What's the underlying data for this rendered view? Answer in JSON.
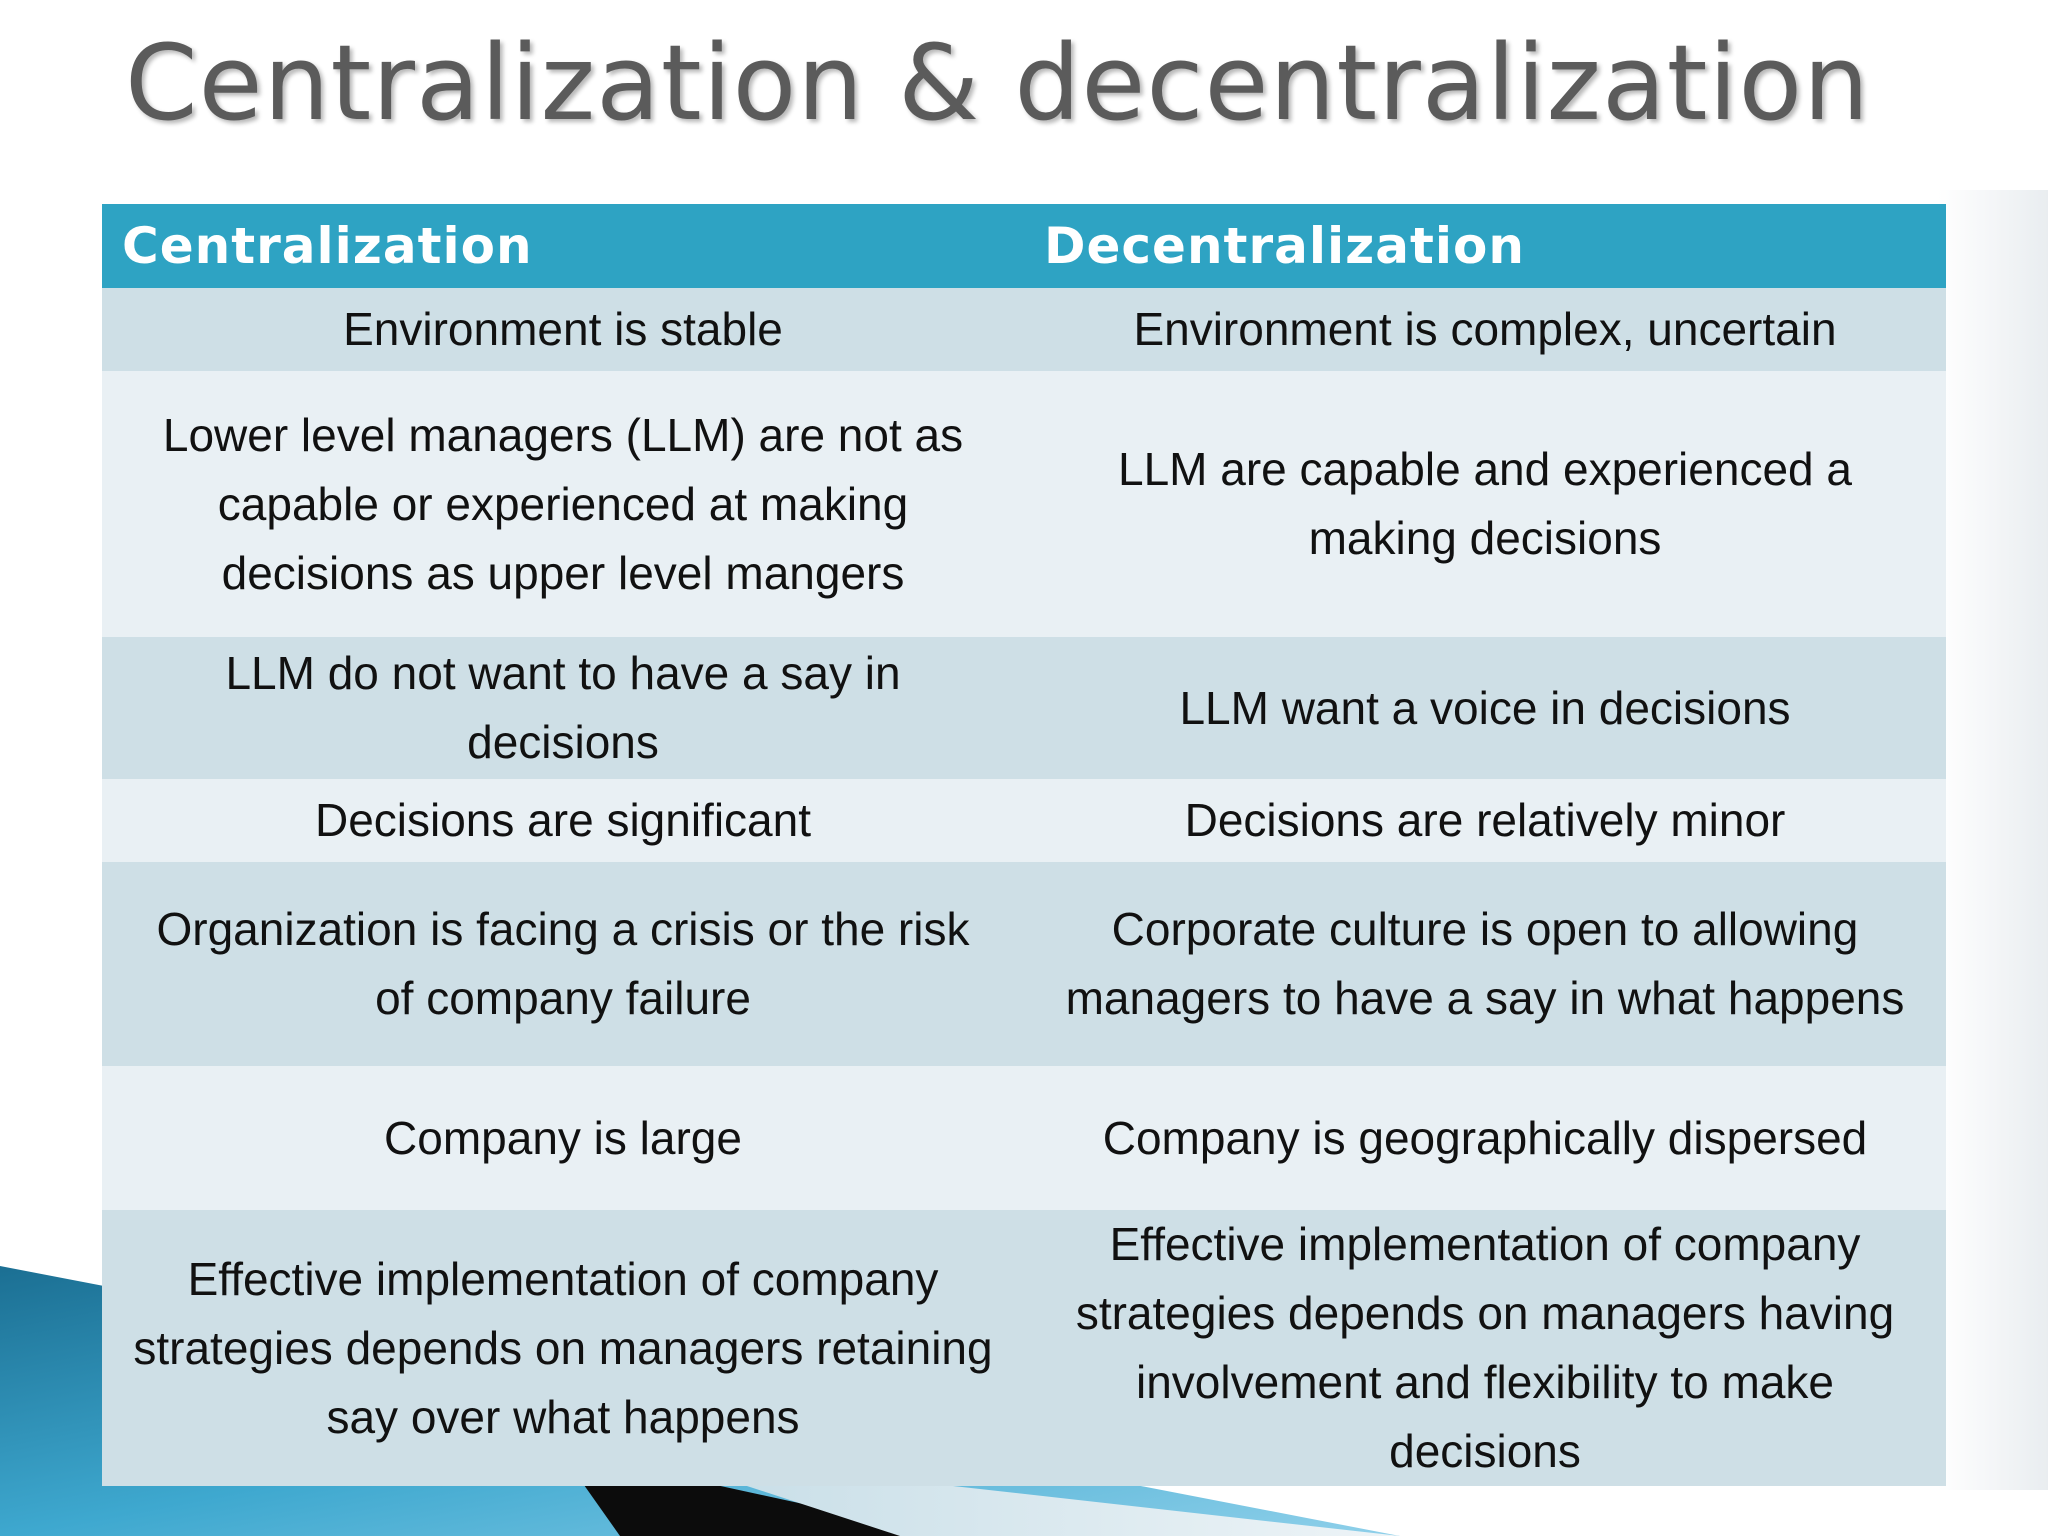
{
  "title": "Centralization & decentralization",
  "table": {
    "headers": [
      "Centralization",
      "Decentralization"
    ],
    "rows": [
      {
        "centralization": "Environment is stable",
        "decentralization": "Environment is complex, uncertain"
      },
      {
        "centralization": "Lower level managers (LLM) are not as capable or experienced at making decisions as upper level mangers",
        "decentralization": "LLM are capable and experienced a making decisions"
      },
      {
        "centralization": "LLM do not want to have a say in decisions",
        "decentralization": "LLM want a voice in decisions"
      },
      {
        "centralization": "Decisions are significant",
        "decentralization": "Decisions are relatively minor"
      },
      {
        "centralization": "Organization is facing a crisis or the risk of company failure",
        "decentralization": "Corporate culture is open to allowing managers to have a say in what happens"
      },
      {
        "centralization": "Company is large",
        "decentralization": "Company is geographically dispersed"
      },
      {
        "centralization": "Effective implementation of company strategies depends on managers retaining say over what happens",
        "decentralization": "Effective implementation of company strategies depends on managers having involvement and flexibility to make decisions"
      }
    ]
  },
  "colors": {
    "header_bg": "#2ea3c3",
    "row_dark": "#cedfe6",
    "row_light": "#e9f0f4",
    "title_text": "#5b5b5b"
  }
}
